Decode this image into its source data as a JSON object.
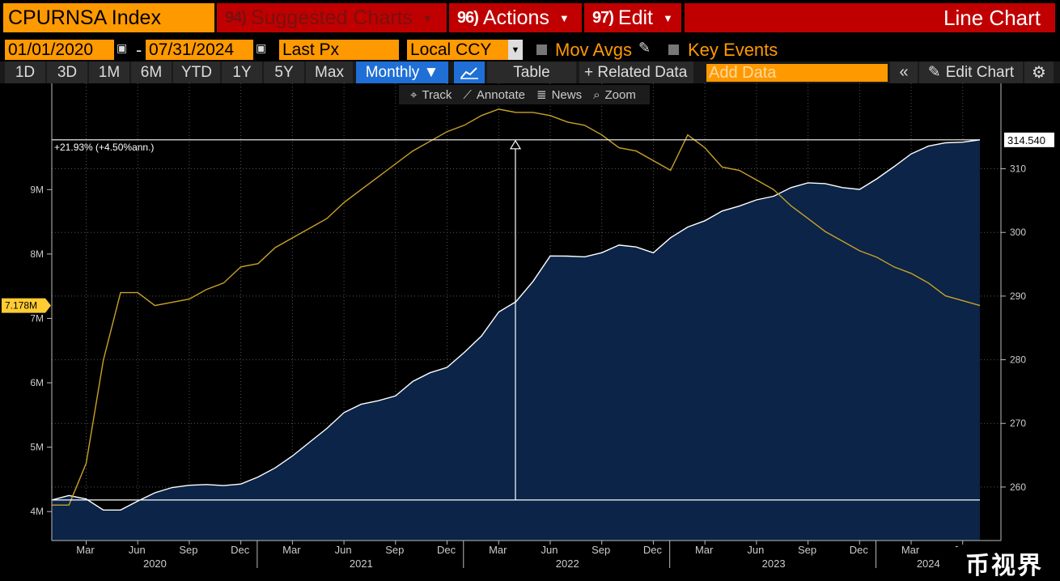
{
  "toolbar": {
    "ticker": "CPURNSA Index",
    "suggested_num": "94)",
    "suggested_label": "Suggested Charts",
    "actions_num": "96)",
    "actions_label": "Actions",
    "edit_num": "97)",
    "edit_label": "Edit",
    "chart_type": "Line Chart"
  },
  "controls": {
    "start_date": "01/01/2020",
    "date_sep": "-",
    "end_date": "07/31/2024",
    "field": "Last Px",
    "currency": "Local CCY",
    "mov_avgs": "Mov Avgs",
    "key_events": "Key Events"
  },
  "ranges": {
    "items": [
      "1D",
      "3D",
      "1M",
      "6M",
      "YTD",
      "1Y",
      "5Y",
      "Max"
    ],
    "period": "Monthly ▼",
    "table": "Table",
    "related": "+ Related Data",
    "add_data_placeholder": "Add Data",
    "edit_chart": "Edit Chart"
  },
  "tools": {
    "track": "Track",
    "annotate": "Annotate",
    "news": "News",
    "zoom": "Zoom"
  },
  "colors": {
    "accent": "#ff9900",
    "red": "#c00000",
    "area": "#0b2447",
    "cpi_line": "#ffffff",
    "yellow_line": "#c9a227"
  },
  "chart_data": {
    "type": "area",
    "x": [
      "2020-01",
      "2020-02",
      "2020-03",
      "2020-04",
      "2020-05",
      "2020-06",
      "2020-07",
      "2020-08",
      "2020-09",
      "2020-10",
      "2020-11",
      "2020-12",
      "2021-01",
      "2021-02",
      "2021-03",
      "2021-04",
      "2021-05",
      "2021-06",
      "2021-07",
      "2021-08",
      "2021-09",
      "2021-10",
      "2021-11",
      "2021-12",
      "2022-01",
      "2022-02",
      "2022-03",
      "2022-04",
      "2022-05",
      "2022-06",
      "2022-07",
      "2022-08",
      "2022-09",
      "2022-10",
      "2022-11",
      "2022-12",
      "2023-01",
      "2023-02",
      "2023-03",
      "2023-04",
      "2023-05",
      "2023-06",
      "2023-07",
      "2023-08",
      "2023-09",
      "2023-10",
      "2023-11",
      "2023-12",
      "2024-01",
      "2024-02",
      "2024-03",
      "2024-04",
      "2024-05",
      "2024-06",
      "2024-07"
    ],
    "series": [
      {
        "name": "CPURNSA Index",
        "axis": "right",
        "values": [
          257.97,
          258.68,
          258.12,
          256.39,
          256.39,
          257.8,
          259.1,
          259.92,
          260.28,
          260.39,
          260.23,
          260.47,
          261.58,
          263.01,
          264.88,
          267.05,
          269.2,
          271.7,
          273.0,
          273.57,
          274.31,
          276.59,
          277.95,
          278.8,
          281.15,
          283.72,
          287.5,
          289.11,
          292.3,
          296.31,
          296.28,
          296.17,
          296.81,
          298.01,
          297.71,
          296.8,
          299.17,
          300.84,
          301.84,
          303.36,
          304.13,
          305.11,
          305.69,
          307.03,
          307.79,
          307.67,
          307.05,
          306.75,
          308.42,
          310.33,
          312.33,
          313.55,
          314.07,
          314.18,
          314.54
        ]
      },
      {
        "name": "",
        "axis": "left",
        "color": "#c9a227",
        "values": [
          4.2,
          4.2,
          5.5,
          8.7,
          10.8,
          10.8,
          10.4,
          10.5,
          10.6,
          10.9,
          11.1,
          11.6,
          11.7,
          12.2,
          12.5,
          12.8,
          13.1,
          13.6,
          14.0,
          14.4,
          14.8,
          15.2,
          15.5,
          15.8,
          16.0,
          16.3,
          16.5,
          16.4,
          16.4,
          16.3,
          16.1,
          16.0,
          15.7,
          15.3,
          15.2,
          14.9,
          14.6,
          15.7,
          15.3,
          14.7,
          14.6,
          14.3,
          14.0,
          13.5,
          13.1,
          12.7,
          12.4,
          12.1,
          11.9,
          11.6,
          11.4,
          11.1,
          10.7,
          10.55,
          10.4
        ]
      }
    ],
    "y_left_ticks": [
      "4M",
      "5M",
      "6M",
      "7M",
      "8M",
      "9M"
    ],
    "y_right_ticks": [
      "260",
      "270",
      "280",
      "290",
      "300",
      "310"
    ],
    "ylim_right": [
      251.6,
      322.4
    ],
    "ylim_left": [
      3.1,
      17.1
    ],
    "left_axis_scale_note": "left tick labels shown as printed",
    "month_ticks": [
      "Mar",
      "Jun",
      "Sep",
      "Dec",
      "Mar",
      "Jun",
      "Sep",
      "Dec",
      "Mar",
      "Jun",
      "Sep",
      "Dec",
      "Mar",
      "Jun",
      "Sep",
      "Dec",
      "Mar",
      "Jun"
    ],
    "year_labels": [
      "2020",
      "2021",
      "2022",
      "2023",
      "2024"
    ],
    "annotation": "+21.93% (+4.50%ann.)",
    "last_value_label": "314.540",
    "left_value_label": "7.178M",
    "grid": true
  }
}
